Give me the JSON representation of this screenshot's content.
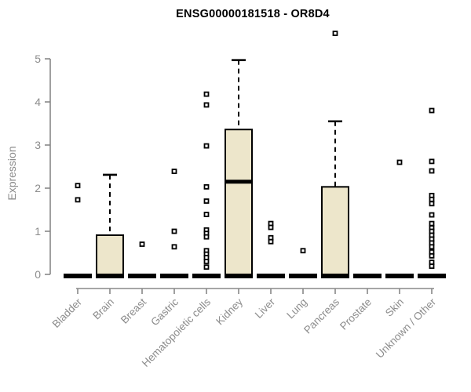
{
  "page": {
    "background": "#FFFFFF"
  },
  "chart_data": {
    "type": "boxplot",
    "title": "ENSG00000181518 - OR8D4",
    "xlabel": "",
    "ylabel": "Expression",
    "ylim": [
      0,
      5.6
    ],
    "yticks": [
      0,
      1,
      2,
      3,
      4,
      5
    ],
    "grid": false,
    "legend": false,
    "colors": {
      "box_fill": "#EDE6CB",
      "box_stroke": "#000000",
      "median": "#000000",
      "whisker": "#000000",
      "outlier_stroke": "#000000",
      "outlier_fill": "#FFFFFF",
      "axis_line": "#888888",
      "axis_text": "#8C8C8C",
      "title_text": "#000000"
    },
    "categories": [
      "Bladder",
      "Brain",
      "Breast",
      "Gastric",
      "Hematopoietic cells",
      "Kidney",
      "Liver",
      "Lung",
      "Pancreas",
      "Prostate",
      "Skin",
      "Unknown / Other"
    ],
    "boxes": [
      {
        "name": "Bladder",
        "q1": 0,
        "median": 0,
        "q3": 0,
        "whisker_low": 0,
        "whisker_high": 0,
        "outliers": [
          2.06,
          1.73
        ]
      },
      {
        "name": "Brain",
        "q1": 0,
        "median": 0,
        "q3": 0.91,
        "whisker_low": 0,
        "whisker_high": 2.31,
        "outliers": []
      },
      {
        "name": "Breast",
        "q1": 0,
        "median": 0,
        "q3": 0,
        "whisker_low": 0,
        "whisker_high": 0,
        "outliers": [
          0.7
        ]
      },
      {
        "name": "Gastric",
        "q1": 0,
        "median": 0,
        "q3": 0,
        "whisker_low": 0,
        "whisker_high": 0,
        "outliers": [
          2.39,
          1.0,
          0.64
        ]
      },
      {
        "name": "Hematopoietic cells",
        "q1": 0,
        "median": 0,
        "q3": 0,
        "whisker_low": 0,
        "whisker_high": 0,
        "outliers": [
          4.18,
          3.93,
          2.98,
          2.03,
          1.7,
          1.39,
          1.03,
          0.95,
          0.87,
          0.55,
          0.47,
          0.39,
          0.3,
          0.17
        ]
      },
      {
        "name": "Kidney",
        "q1": 0,
        "median": 2.15,
        "q3": 3.36,
        "whisker_low": 0,
        "whisker_high": 4.97,
        "outliers": []
      },
      {
        "name": "Liver",
        "q1": 0,
        "median": 0,
        "q3": 0,
        "whisker_low": 0,
        "whisker_high": 0,
        "outliers": [
          1.18,
          1.09,
          0.85,
          0.76
        ]
      },
      {
        "name": "Lung",
        "q1": 0,
        "median": 0,
        "q3": 0,
        "whisker_low": 0,
        "whisker_high": 0,
        "outliers": [
          0.55
        ]
      },
      {
        "name": "Pancreas",
        "q1": 0,
        "median": 0,
        "q3": 2.03,
        "whisker_low": 0,
        "whisker_high": 3.55,
        "outliers": [
          5.59
        ]
      },
      {
        "name": "Prostate",
        "q1": 0,
        "median": 0,
        "q3": 0,
        "whisker_low": 0,
        "whisker_high": 0,
        "outliers": []
      },
      {
        "name": "Skin",
        "q1": 0,
        "median": 0,
        "q3": 0,
        "whisker_low": 0,
        "whisker_high": 0,
        "outliers": [
          2.6
        ]
      },
      {
        "name": "Unknown / Other",
        "q1": 0,
        "median": 0,
        "q3": 0,
        "whisker_low": 0,
        "whisker_high": 0,
        "outliers": [
          3.8,
          2.62,
          2.4,
          1.83,
          1.74,
          1.64,
          1.38,
          1.18,
          1.08,
          1.0,
          0.91,
          0.82,
          0.73,
          0.64,
          0.52,
          0.43,
          0.28,
          0.19
        ]
      }
    ]
  }
}
